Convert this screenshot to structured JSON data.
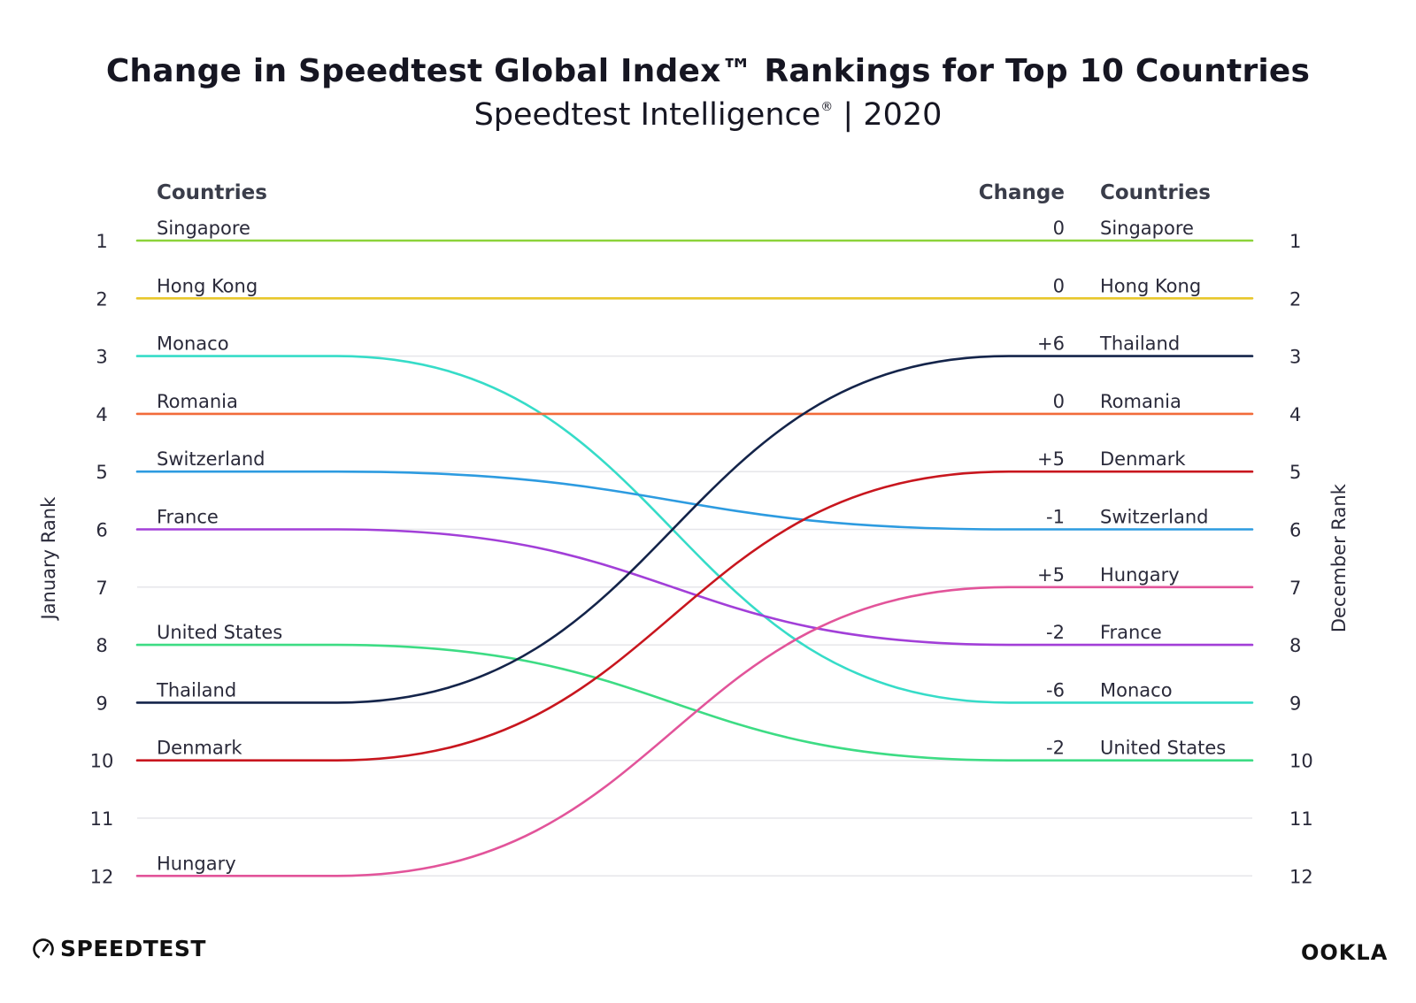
{
  "header": {
    "title": "Change in Speedtest Global Index™ Rankings for Top 10 Countries",
    "subtitle_main": "Speedtest Intelligence",
    "subtitle_mark": "®",
    "subtitle_tail": " | 2020"
  },
  "chart_data": {
    "type": "line",
    "title": "Change in Speedtest Global Index™ Rankings for Top 10 Countries",
    "subtitle": "Speedtest Intelligence® | 2020",
    "y_left_label": "January Rank",
    "y_right_label": "December Rank",
    "left_header": "Countries",
    "change_header": "Change",
    "right_header": "Countries",
    "rank_ticks": [
      1,
      2,
      3,
      4,
      5,
      6,
      7,
      8,
      9,
      10,
      11,
      12
    ],
    "ylim": [
      1,
      12
    ],
    "y_inverted": true,
    "series": [
      {
        "name": "Singapore",
        "jan_rank": 1,
        "dec_rank": 1,
        "change": "0",
        "color": "#8cd33a"
      },
      {
        "name": "Hong Kong",
        "jan_rank": 2,
        "dec_rank": 2,
        "change": "0",
        "color": "#e8c72c"
      },
      {
        "name": "Monaco",
        "jan_rank": 3,
        "dec_rank": 9,
        "change": "-6",
        "color": "#36dcc8"
      },
      {
        "name": "Romania",
        "jan_rank": 4,
        "dec_rank": 4,
        "change": "0",
        "color": "#f26b3a"
      },
      {
        "name": "Switzerland",
        "jan_rank": 5,
        "dec_rank": 6,
        "change": "-1",
        "color": "#2d9be0"
      },
      {
        "name": "France",
        "jan_rank": 6,
        "dec_rank": 8,
        "change": "-2",
        "color": "#a23fd8"
      },
      {
        "name": "United States",
        "jan_rank": 8,
        "dec_rank": 10,
        "change": "-2",
        "color": "#3ddc84"
      },
      {
        "name": "Thailand",
        "jan_rank": 9,
        "dec_rank": 3,
        "change": "+6",
        "color": "#14244a"
      },
      {
        "name": "Denmark",
        "jan_rank": 10,
        "dec_rank": 5,
        "change": "+5",
        "color": "#c8161e"
      },
      {
        "name": "Hungary",
        "jan_rank": 12,
        "dec_rank": 7,
        "change": "+5",
        "color": "#e2549a"
      }
    ],
    "grid": true,
    "gridline_color": "#e6e6ea"
  },
  "branding": {
    "left_logo": "SPEEDTEST",
    "left_logo_icon": "gauge-icon",
    "right_logo": "OOKLA"
  }
}
